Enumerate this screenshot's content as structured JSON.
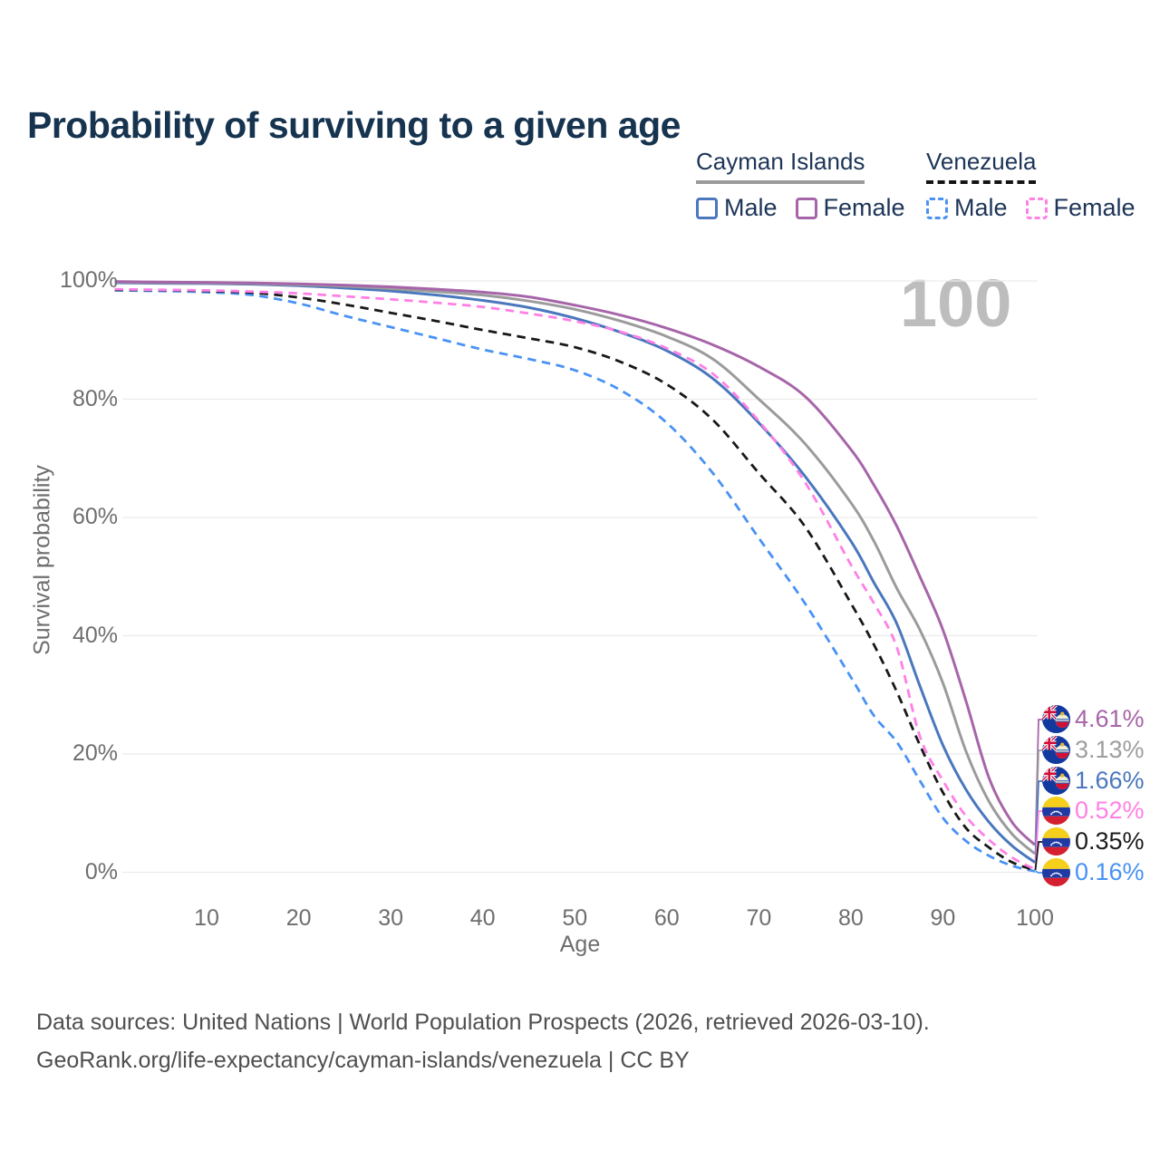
{
  "title": "Probability of surviving to a given age",
  "watermark": "100",
  "legend": {
    "groups": [
      {
        "name": "Cayman Islands",
        "line_style": "solid",
        "underline_color": "#9b9b9b",
        "items": [
          {
            "label": "Male",
            "color": "#4a77bd",
            "dashed": false
          },
          {
            "label": "Female",
            "color": "#a765a9",
            "dashed": false
          }
        ]
      },
      {
        "name": "Venezuela",
        "line_style": "dashed",
        "underline_color": "#141414",
        "items": [
          {
            "label": "Male",
            "color": "#4992f4",
            "dashed": true
          },
          {
            "label": "Female",
            "color": "#ff80e5",
            "dashed": true
          }
        ]
      }
    ]
  },
  "axes": {
    "y_label": "Survival probability",
    "x_label": "Age",
    "y_ticks": [
      "0%",
      "20%",
      "40%",
      "60%",
      "80%",
      "100%"
    ],
    "x_ticks": [
      "10",
      "20",
      "30",
      "40",
      "50",
      "60",
      "70",
      "80",
      "90",
      "100"
    ]
  },
  "end_labels": [
    {
      "value": "4.61%",
      "flag": "cayman-islands",
      "color": "#a765a9"
    },
    {
      "value": "3.13%",
      "flag": "cayman-islands",
      "color": "#9e9e9e"
    },
    {
      "value": "1.66%",
      "flag": "cayman-islands",
      "color": "#4a77bd"
    },
    {
      "value": "0.52%",
      "flag": "venezuela",
      "color": "#ff80e5"
    },
    {
      "value": "0.35%",
      "flag": "venezuela",
      "color": "#1c1c1c"
    },
    {
      "value": "0.16%",
      "flag": "venezuela",
      "color": "#4992f4"
    }
  ],
  "footer": {
    "line1": "Data sources: United Nations | World Population Prospects (2026, retrieved 2026-03-10).",
    "line2": "GeoRank.org/life-expectancy/cayman-islands/venezuela | CC BY"
  },
  "chart_data": {
    "type": "line",
    "title": "Probability of surviving to a given age",
    "xlabel": "Age",
    "ylabel": "Survival probability",
    "x_range": [
      0,
      100
    ],
    "y_range_percent": [
      0,
      100
    ],
    "grid": "horizontal",
    "legend_position": "top-right",
    "watermark_age": "100",
    "series": [
      {
        "name": "Cayman Islands Female",
        "country": "cayman-islands",
        "sex": "female",
        "color": "#a765a9",
        "dashed": false,
        "end_value_pct": 4.61,
        "points": [
          [
            0,
            99.9
          ],
          [
            5,
            99.8
          ],
          [
            10,
            99.75
          ],
          [
            15,
            99.65
          ],
          [
            20,
            99.5
          ],
          [
            25,
            99.3
          ],
          [
            30,
            99.0
          ],
          [
            35,
            98.6
          ],
          [
            40,
            98.1
          ],
          [
            45,
            97.3
          ],
          [
            50,
            95.9
          ],
          [
            55,
            94.2
          ],
          [
            60,
            92.0
          ],
          [
            65,
            89.2
          ],
          [
            70,
            85.5
          ],
          [
            75,
            80.5
          ],
          [
            80,
            71.5
          ],
          [
            82.5,
            65.5
          ],
          [
            85,
            58.5
          ],
          [
            87.5,
            50.0
          ],
          [
            90,
            41.0
          ],
          [
            92.5,
            29.0
          ],
          [
            95,
            16.0
          ],
          [
            97.5,
            8.5
          ],
          [
            100,
            4.61
          ]
        ]
      },
      {
        "name": "Cayman Islands Both sexes",
        "country": "cayman-islands",
        "sex": "total",
        "color": "#9b9b9b",
        "dashed": false,
        "end_value_pct": 3.13,
        "points": [
          [
            0,
            99.8
          ],
          [
            5,
            99.7
          ],
          [
            10,
            99.65
          ],
          [
            15,
            99.55
          ],
          [
            20,
            99.35
          ],
          [
            25,
            99.1
          ],
          [
            30,
            98.7
          ],
          [
            35,
            98.2
          ],
          [
            40,
            97.6
          ],
          [
            45,
            96.6
          ],
          [
            50,
            95.2
          ],
          [
            55,
            93.2
          ],
          [
            60,
            90.6
          ],
          [
            65,
            86.8
          ],
          [
            70,
            80.0
          ],
          [
            75,
            72.5
          ],
          [
            80,
            62.5
          ],
          [
            82.5,
            56.0
          ],
          [
            85,
            48.0
          ],
          [
            87.5,
            41.0
          ],
          [
            90,
            32.0
          ],
          [
            92.5,
            20.5
          ],
          [
            95,
            12.0
          ],
          [
            97.5,
            6.5
          ],
          [
            100,
            3.13
          ]
        ]
      },
      {
        "name": "Cayman Islands Male",
        "country": "cayman-islands",
        "sex": "male",
        "color": "#4a77bd",
        "dashed": false,
        "end_value_pct": 1.66,
        "points": [
          [
            0,
            99.7
          ],
          [
            5,
            99.6
          ],
          [
            10,
            99.55
          ],
          [
            15,
            99.45
          ],
          [
            20,
            99.2
          ],
          [
            25,
            98.8
          ],
          [
            30,
            98.3
          ],
          [
            35,
            97.6
          ],
          [
            40,
            96.7
          ],
          [
            45,
            95.5
          ],
          [
            50,
            93.7
          ],
          [
            55,
            91.3
          ],
          [
            60,
            88.2
          ],
          [
            65,
            83.5
          ],
          [
            70,
            76.0
          ],
          [
            75,
            67.0
          ],
          [
            80,
            56.0
          ],
          [
            82.5,
            49.0
          ],
          [
            85,
            42.0
          ],
          [
            87.5,
            31.5
          ],
          [
            90,
            21.5
          ],
          [
            92.5,
            14.0
          ],
          [
            95,
            8.5
          ],
          [
            97.5,
            4.5
          ],
          [
            100,
            1.66
          ]
        ]
      },
      {
        "name": "Venezuela Female",
        "country": "venezuela",
        "sex": "female",
        "color": "#ff80e5",
        "dashed": true,
        "end_value_pct": 0.52,
        "points": [
          [
            0,
            98.6
          ],
          [
            5,
            98.5
          ],
          [
            10,
            98.4
          ],
          [
            15,
            98.2
          ],
          [
            20,
            97.9
          ],
          [
            25,
            97.4
          ],
          [
            30,
            96.9
          ],
          [
            35,
            96.3
          ],
          [
            40,
            95.6
          ],
          [
            45,
            94.5
          ],
          [
            50,
            93.2
          ],
          [
            55,
            91.4
          ],
          [
            60,
            88.6
          ],
          [
            65,
            84.3
          ],
          [
            70,
            76.3
          ],
          [
            75,
            66.0
          ],
          [
            80,
            52.0
          ],
          [
            82.5,
            45.5
          ],
          [
            85,
            38.0
          ],
          [
            87.5,
            23.0
          ],
          [
            90,
            15.5
          ],
          [
            92.5,
            9.5
          ],
          [
            95,
            5.5
          ],
          [
            97.5,
            2.5
          ],
          [
            100,
            0.52
          ]
        ]
      },
      {
        "name": "Venezuela Both sexes",
        "country": "venezuela",
        "sex": "total",
        "color": "#181818",
        "dashed": true,
        "end_value_pct": 0.35,
        "points": [
          [
            0,
            98.5
          ],
          [
            5,
            98.45
          ],
          [
            10,
            98.3
          ],
          [
            15,
            98.0
          ],
          [
            20,
            97.2
          ],
          [
            25,
            96.0
          ],
          [
            30,
            94.6
          ],
          [
            35,
            93.2
          ],
          [
            40,
            91.7
          ],
          [
            45,
            90.3
          ],
          [
            50,
            88.8
          ],
          [
            55,
            86.3
          ],
          [
            60,
            82.5
          ],
          [
            65,
            76.5
          ],
          [
            70,
            67.5
          ],
          [
            75,
            58.5
          ],
          [
            80,
            45.5
          ],
          [
            82.5,
            38.5
          ],
          [
            85,
            30.5
          ],
          [
            87.5,
            21.5
          ],
          [
            90,
            13.5
          ],
          [
            92.5,
            7.5
          ],
          [
            95,
            4.2
          ],
          [
            97.5,
            1.7
          ],
          [
            100,
            0.35
          ]
        ]
      },
      {
        "name": "Venezuela Male",
        "country": "venezuela",
        "sex": "male",
        "color": "#4992f4",
        "dashed": true,
        "end_value_pct": 0.16,
        "points": [
          [
            0,
            98.4
          ],
          [
            5,
            98.3
          ],
          [
            10,
            98.1
          ],
          [
            15,
            97.6
          ],
          [
            20,
            96.2
          ],
          [
            25,
            94.1
          ],
          [
            30,
            92.2
          ],
          [
            35,
            90.3
          ],
          [
            40,
            88.4
          ],
          [
            45,
            86.8
          ],
          [
            50,
            84.9
          ],
          [
            55,
            81.5
          ],
          [
            60,
            76.0
          ],
          [
            65,
            67.5
          ],
          [
            70,
            56.5
          ],
          [
            75,
            45.5
          ],
          [
            80,
            33.0
          ],
          [
            82.5,
            26.5
          ],
          [
            85,
            22.0
          ],
          [
            87.5,
            15.5
          ],
          [
            90,
            9.2
          ],
          [
            92.5,
            5.3
          ],
          [
            95,
            2.8
          ],
          [
            97.5,
            1.1
          ],
          [
            100,
            0.16
          ]
        ]
      }
    ]
  }
}
